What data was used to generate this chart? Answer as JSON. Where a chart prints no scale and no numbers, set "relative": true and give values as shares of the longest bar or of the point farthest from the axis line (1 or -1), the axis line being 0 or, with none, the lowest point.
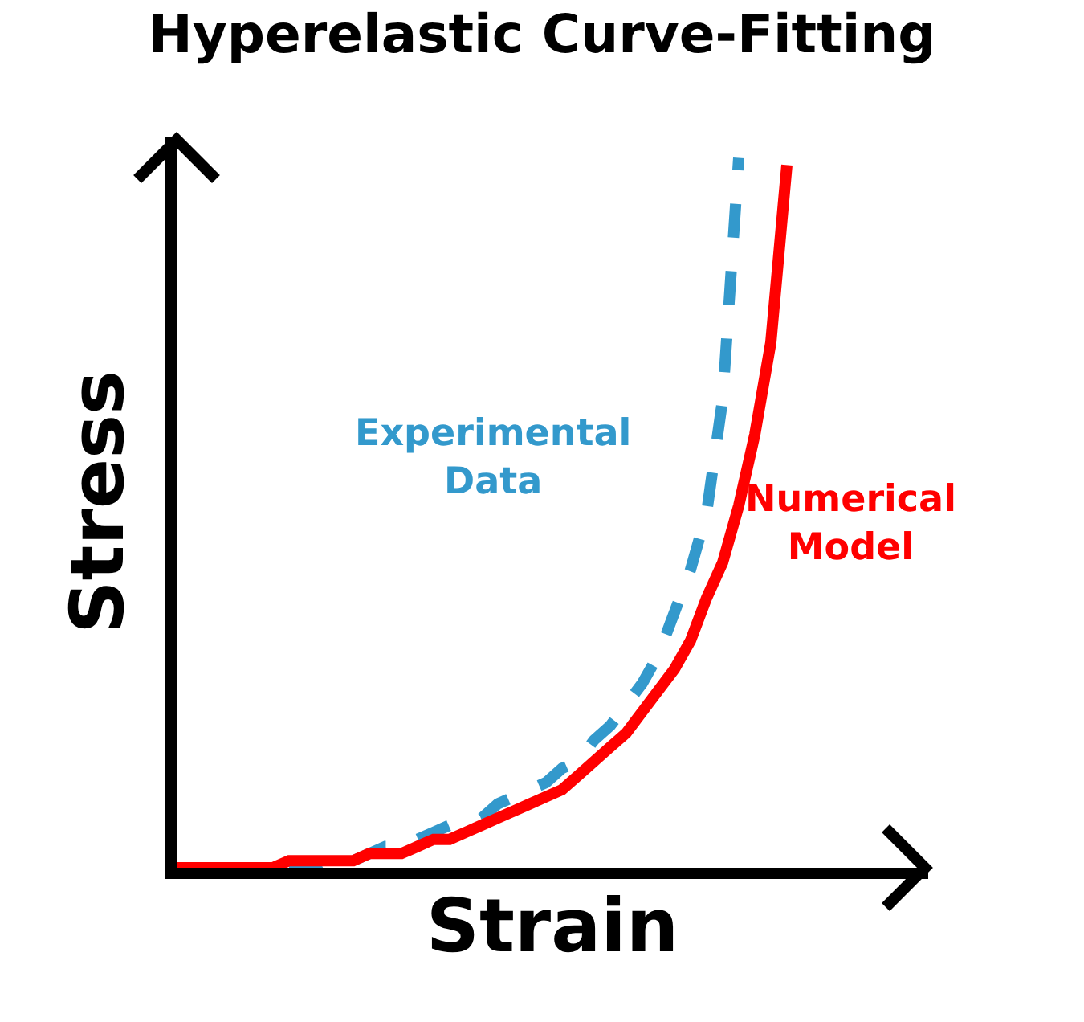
{
  "chart_data": {
    "type": "line",
    "title": "Hyperelastic Curve-Fitting",
    "xlabel": "Strain",
    "ylabel": "Stress",
    "relative": true,
    "categories": [
      null,
      null,
      null,
      null,
      null,
      null,
      null,
      null,
      null,
      null,
      null,
      null,
      null,
      null,
      null,
      null,
      null,
      null,
      null,
      null,
      null,
      null,
      null,
      null,
      null,
      null,
      null,
      null,
      null,
      null,
      null,
      null,
      null,
      null,
      null,
      null,
      null,
      null,
      null
    ],
    "series": [
      {
        "name": "Experimental Data",
        "color": "#3399cc",
        "line_style": "dashed",
        "values": [
          null,
          null,
          null,
          null,
          null,
          null,
          null,
          0,
          0,
          0,
          0.01,
          0.01,
          0.02,
          0.03,
          0.03,
          0.04,
          0.05,
          0.06,
          0.06,
          0.07,
          0.09,
          0.1,
          0.11,
          0.12,
          0.14,
          0.15,
          0.18,
          0.2,
          0.23,
          0.26,
          0.3,
          0.36,
          0.42,
          0.5,
          0.66,
          1,
          null,
          null,
          null
        ]
      },
      {
        "name": "Numerical Model",
        "color": "#ff0000",
        "line_style": "solid",
        "values": [
          0,
          0,
          0,
          0,
          0,
          0,
          0,
          0.01,
          0.01,
          0.01,
          0.01,
          0.01,
          0.02,
          0.02,
          0.02,
          0.03,
          0.04,
          0.04,
          0.05,
          0.06,
          0.07,
          0.08,
          0.09,
          0.1,
          0.11,
          0.13,
          0.15,
          0.17,
          0.19,
          0.22,
          0.25,
          0.28,
          0.32,
          0.38,
          0.43,
          0.51,
          0.61,
          0.74,
          0.99
        ]
      }
    ],
    "marker": "none"
  }
}
